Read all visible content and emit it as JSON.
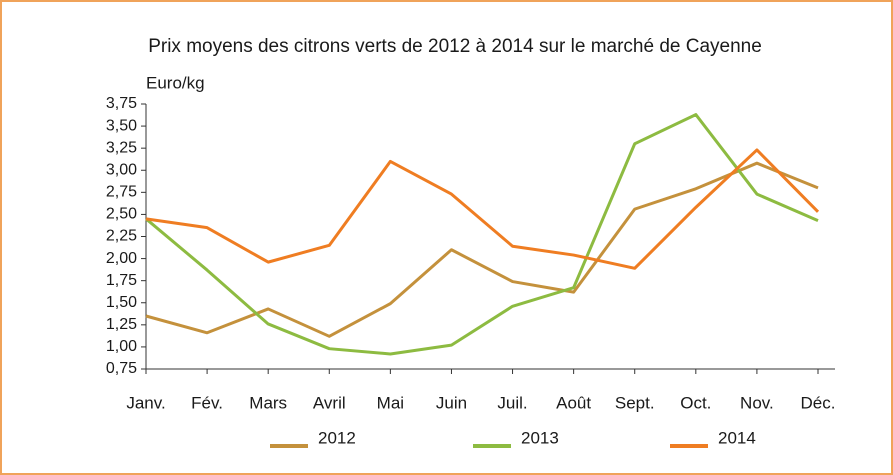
{
  "chart_data": {
    "type": "line",
    "title": "Prix moyens des citrons verts de 2012 à 2014 sur le marché de Cayenne",
    "y_label": "Euro/kg",
    "categories": [
      "Janv.",
      "Fév.",
      "Mars",
      "Avril",
      "Mai",
      "Juin",
      "Juil.",
      "Août",
      "Sept.",
      "Oct.",
      "Nov.",
      "Déc."
    ],
    "series": [
      {
        "name": "2012",
        "color": "#c4913c",
        "values": [
          1.35,
          1.16,
          1.43,
          1.12,
          1.49,
          2.1,
          1.74,
          1.62,
          2.56,
          2.79,
          3.08,
          2.8
        ]
      },
      {
        "name": "2013",
        "color": "#8dbb41",
        "values": [
          2.45,
          1.87,
          1.26,
          0.98,
          0.92,
          1.02,
          1.46,
          1.67,
          3.3,
          3.63,
          2.73,
          2.43
        ]
      },
      {
        "name": "2014",
        "color": "#ef7d22",
        "values": [
          2.45,
          2.35,
          1.96,
          2.15,
          3.1,
          2.73,
          2.14,
          2.04,
          1.89,
          2.58,
          3.23,
          2.53
        ]
      }
    ],
    "ylim": [
      0.75,
      3.75
    ],
    "yticks": [
      {
        "value": 0.75,
        "label": "0,75"
      },
      {
        "value": 1.0,
        "label": "1,00"
      },
      {
        "value": 1.25,
        "label": "1,25"
      },
      {
        "value": 1.5,
        "label": "1,50"
      },
      {
        "value": 1.75,
        "label": "1,75"
      },
      {
        "value": 2.0,
        "label": "2,00"
      },
      {
        "value": 2.25,
        "label": "2,25"
      },
      {
        "value": 2.5,
        "label": "2,50"
      },
      {
        "value": 2.75,
        "label": "2,75"
      },
      {
        "value": 3.0,
        "label": "3,00"
      },
      {
        "value": 3.25,
        "label": "3,25"
      },
      {
        "value": 3.5,
        "label": "3,50"
      },
      {
        "value": 3.75,
        "label": "3,75"
      }
    ],
    "grid": false,
    "legend": "bottom"
  }
}
